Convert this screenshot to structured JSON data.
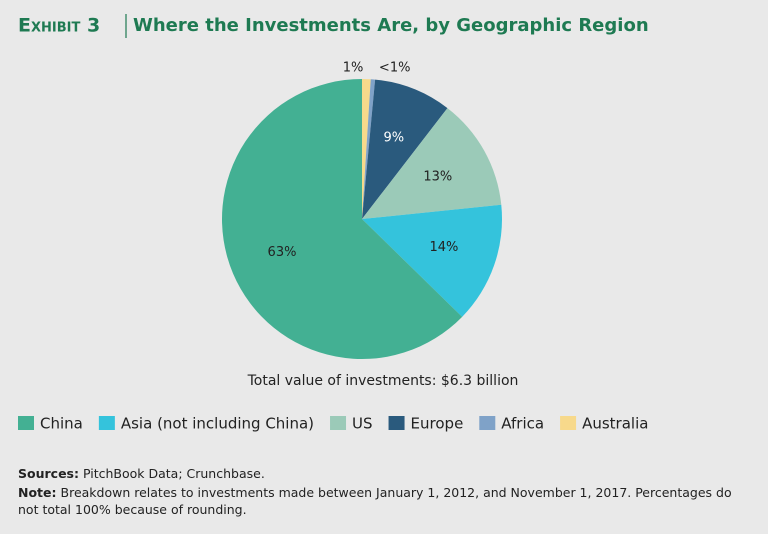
{
  "chart_data": {
    "type": "pie",
    "exhibit": "Exhibit 3",
    "title": "Where the Investments Are, by Geographic Region",
    "annotation": "Total value of investments: $6.3 billion",
    "series": [
      {
        "name": "China",
        "color": "#43b093",
        "values": [
          63
        ],
        "value_labels": [
          "63%"
        ]
      },
      {
        "name": "Asia (not including China)",
        "color": "#34c3dc",
        "values": [
          14
        ],
        "value_labels": [
          "14%"
        ]
      },
      {
        "name": "US",
        "color": "#9bcab8",
        "values": [
          13
        ],
        "value_labels": [
          "13%"
        ]
      },
      {
        "name": "Europe",
        "color": "#2a5a7d",
        "values": [
          9
        ],
        "value_labels": [
          "9%"
        ]
      },
      {
        "name": "Africa",
        "color": "#7fa2c8",
        "values": [
          0.5
        ],
        "value_labels": [
          "<1%"
        ]
      },
      {
        "name": "Australia",
        "color": "#f7d98b",
        "values": [
          1
        ],
        "value_labels": [
          "1%"
        ]
      }
    ],
    "source_label": "Sources:",
    "source": "PitchBook Data; Crunchbase.",
    "note_label": "Note:",
    "note": "Breakdown relates to investments made between January 1, 2012, and November 1, 2017. Percentages do not total 100% because of rounding."
  }
}
